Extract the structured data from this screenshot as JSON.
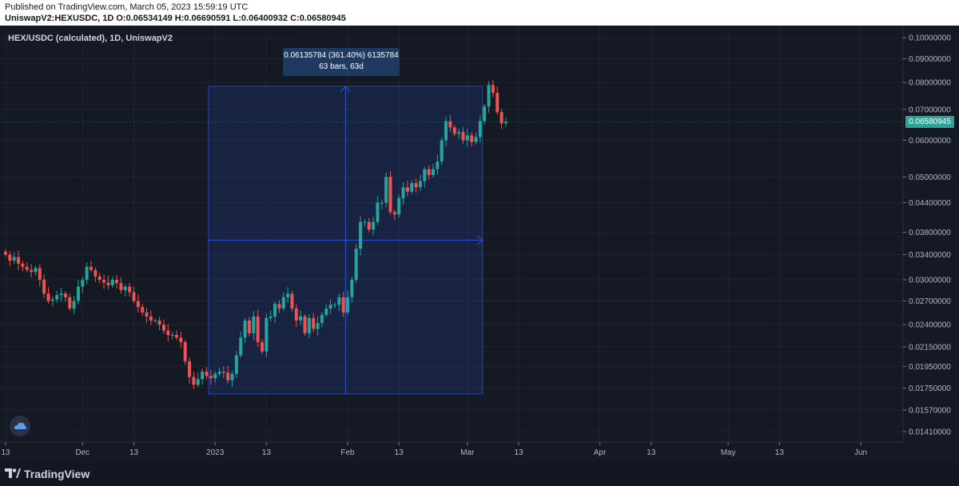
{
  "header": {
    "published": "Published on TradingView.com, March 05, 2023 15:59:19 UTC",
    "ohlc": "UniswapV2:HEXUSDC, 1D O:0.06534149 H:0.06690591 L:0.06400932 C:0.06580945"
  },
  "legend": "HEX/USDC (calculated), 1D, UniswapV2",
  "measure": {
    "line1": "0.06135784 (361.40%) 6135784",
    "line2": "63 bars, 63d",
    "start_index": 48,
    "end_index": 111,
    "price_low": 0.017,
    "price_high": 0.0785
  },
  "last_price_label": "0.06580945",
  "footer": {
    "brand": "TradingView",
    "logo_icon": "tradingview-logo-icon"
  },
  "colors": {
    "up": "#26a69a",
    "down": "#ef5350",
    "measure": "#2962ff",
    "background": "#151924"
  },
  "chart_data": {
    "type": "candlestick",
    "y_scale": "log",
    "y_ticks": [
      "0.10000000",
      "0.09000000",
      "0.08000000",
      "0.07000000",
      "0.06000000",
      "0.05000000",
      "0.04400000",
      "0.03800000",
      "0.03400000",
      "0.03000000",
      "0.02700000",
      "0.02400000",
      "0.02150000",
      "0.01950000",
      "0.01750000",
      "0.01570000",
      "0.01410000"
    ],
    "x_ticks": [
      {
        "label": "13",
        "index": 0
      },
      {
        "label": "Dec",
        "index": 18
      },
      {
        "label": "13",
        "index": 30
      },
      {
        "label": "2023",
        "index": 49
      },
      {
        "label": "13",
        "index": 61
      },
      {
        "label": "Feb",
        "index": 80
      },
      {
        "label": "13",
        "index": 92
      },
      {
        "label": "Mar",
        "index": 108
      },
      {
        "label": "13",
        "index": 120
      },
      {
        "label": "Apr",
        "index": 139
      },
      {
        "label": "13",
        "index": 151
      },
      {
        "label": "May",
        "index": 169
      },
      {
        "label": "13",
        "index": 181
      },
      {
        "label": "Jun",
        "index": 200
      }
    ],
    "closes": [
      0.034,
      0.033,
      0.0336,
      0.0325,
      0.032,
      0.0315,
      0.0312,
      0.0318,
      0.03,
      0.028,
      0.027,
      0.0272,
      0.0278,
      0.028,
      0.0275,
      0.026,
      0.027,
      0.029,
      0.03,
      0.032,
      0.0315,
      0.0305,
      0.03,
      0.0296,
      0.0292,
      0.03,
      0.0295,
      0.0285,
      0.029,
      0.0282,
      0.027,
      0.0262,
      0.0255,
      0.025,
      0.0245,
      0.0245,
      0.024,
      0.0233,
      0.0228,
      0.0228,
      0.0225,
      0.022,
      0.02,
      0.0185,
      0.0178,
      0.0183,
      0.019,
      0.0186,
      0.0184,
      0.0188,
      0.019,
      0.0189,
      0.0182,
      0.0188,
      0.0206,
      0.0225,
      0.0245,
      0.023,
      0.025,
      0.022,
      0.021,
      0.0248,
      0.025,
      0.0266,
      0.026,
      0.0275,
      0.028,
      0.026,
      0.0245,
      0.025,
      0.023,
      0.0248,
      0.0235,
      0.0242,
      0.0252,
      0.026,
      0.0265,
      0.0265,
      0.0275,
      0.0255,
      0.0275,
      0.03,
      0.035,
      0.04,
      0.04,
      0.0385,
      0.04,
      0.044,
      0.044,
      0.05,
      0.042,
      0.0415,
      0.045,
      0.0475,
      0.0465,
      0.0485,
      0.0475,
      0.049,
      0.052,
      0.0505,
      0.052,
      0.054,
      0.06,
      0.066,
      0.064,
      0.062,
      0.0625,
      0.06,
      0.0615,
      0.0595,
      0.061,
      0.066,
      0.071,
      0.079,
      0.076,
      0.069,
      0.0653,
      0.0658
    ]
  }
}
